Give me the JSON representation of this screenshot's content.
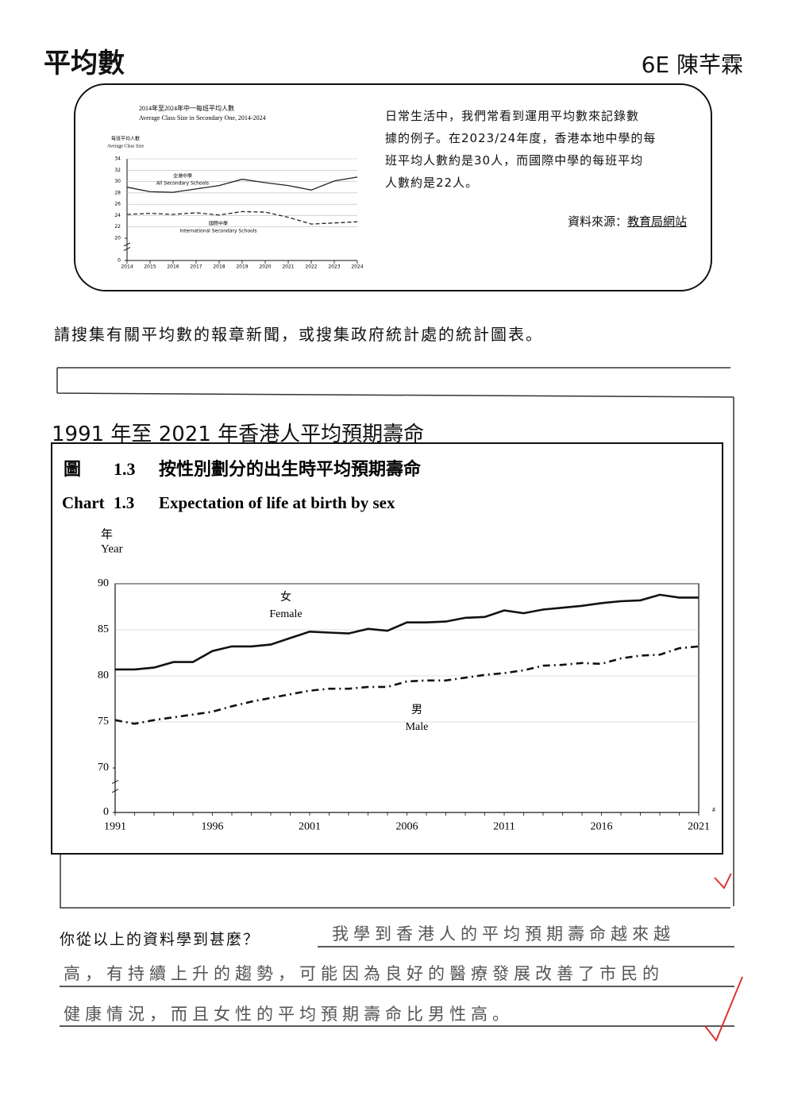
{
  "header": {
    "title": "平均數",
    "name": "6E 陳芊霖"
  },
  "intro": {
    "chart": {
      "type": "line",
      "title": "2014年至2024年中一每班平均人數",
      "subtitle": "Average Class Size in Secondary One, 2014-2024",
      "ylabel": "每班平均人數",
      "ylabel_en": "Average Class Size",
      "x": [
        2014,
        2015,
        2016,
        2017,
        2018,
        2019,
        2020,
        2021,
        2022,
        2023,
        2024
      ],
      "xlim": [
        2014,
        2024
      ],
      "xticks": [
        2014,
        2015,
        2016,
        2017,
        2018,
        2019,
        2020,
        2021,
        2022,
        2023,
        2024
      ],
      "ylim": [
        0,
        34
      ],
      "axis_break": [
        0,
        20
      ],
      "yticks": [
        0,
        20,
        22,
        24,
        26,
        28,
        30,
        32,
        34
      ],
      "grid": true,
      "series": [
        {
          "name": "全港中學",
          "name_en": "All Secondary Schools",
          "color": "#222",
          "line_style": "solid",
          "values": [
            29,
            28.2,
            28.1,
            28.7,
            29.3,
            30.4,
            29.8,
            29.3,
            28.5,
            30.1,
            30.8
          ]
        },
        {
          "name": "國際中學",
          "name_en": "International Secondary Schools",
          "color": "#222",
          "line_style": "dash",
          "values": [
            24.2,
            24.4,
            24.2,
            24.5,
            24.1,
            24.7,
            24.6,
            23.7,
            22.5,
            22.7,
            22.9
          ]
        }
      ]
    },
    "text": [
      "日常生活中，我們常看到運用平均數來記錄數",
      "據的例子。在2023/24年度，香港本地中學的每",
      "班平均人數約是30人，而國際中學的每班平均",
      "人數約是22人。"
    ],
    "source_label": "資料來源：",
    "source": "教育局網站"
  },
  "instruction": "請搜集有關平均數的報章新聞，或搜集政府統計處的統計圖表。",
  "clipping": {
    "heading": "1991 年至 2021 年香港人平均預期壽命",
    "chart": {
      "type": "line",
      "label_zh": "圖",
      "label_en": "Chart",
      "number": "1.3",
      "title": "按性別劃分的出生時平均預期壽命",
      "title_en": "Expectation of life at birth by sex",
      "ylabel": "年",
      "ylabel_en": "Year",
      "note_mark": "#",
      "x": [
        1991,
        1992,
        1993,
        1994,
        1995,
        1996,
        1997,
        1998,
        1999,
        2000,
        2001,
        2002,
        2003,
        2004,
        2005,
        2006,
        2007,
        2008,
        2009,
        2010,
        2011,
        2012,
        2013,
        2014,
        2015,
        2016,
        2017,
        2018,
        2019,
        2020,
        2021
      ],
      "xlim": [
        1991,
        2021
      ],
      "xticks": [
        1991,
        1996,
        2001,
        2006,
        2011,
        2016,
        2021
      ],
      "ylim": [
        0,
        90
      ],
      "axis_break": [
        0,
        70
      ],
      "yticks": [
        0,
        70,
        75,
        80,
        85,
        90
      ],
      "grid": true,
      "series": [
        {
          "name": "女",
          "name_en": "Female",
          "color": "#111",
          "line_style": "solid",
          "values": [
            80.7,
            80.7,
            80.9,
            81.5,
            81.5,
            82.7,
            83.2,
            83.2,
            83.4,
            84.1,
            84.8,
            84.7,
            84.6,
            85.1,
            84.9,
            85.8,
            85.8,
            85.9,
            86.3,
            86.4,
            87.1,
            86.8,
            87.2,
            87.4,
            87.6,
            87.9,
            88.1,
            88.2,
            88.8,
            88.5,
            88.5
          ]
        },
        {
          "name": "男",
          "name_en": "Male",
          "color": "#111",
          "line_style": "dash-dot",
          "values": [
            75.2,
            74.8,
            75.2,
            75.5,
            75.8,
            76.1,
            76.7,
            77.2,
            77.6,
            78.0,
            78.4,
            78.6,
            78.6,
            78.8,
            78.8,
            79.4,
            79.5,
            79.5,
            79.8,
            80.1,
            80.3,
            80.6,
            81.1,
            81.2,
            81.4,
            81.3,
            81.9,
            82.2,
            82.3,
            83.0,
            83.2
          ]
        }
      ]
    }
  },
  "question": "你從以上的資料學到甚麼？",
  "answer": [
    "我學到香港人的平均預期壽命越來越",
    "高，有持續上升的趨勢，可能因為良好的醫療發展改善了市民的",
    "健康情況，而且女性的平均預期壽命比男性高。"
  ]
}
